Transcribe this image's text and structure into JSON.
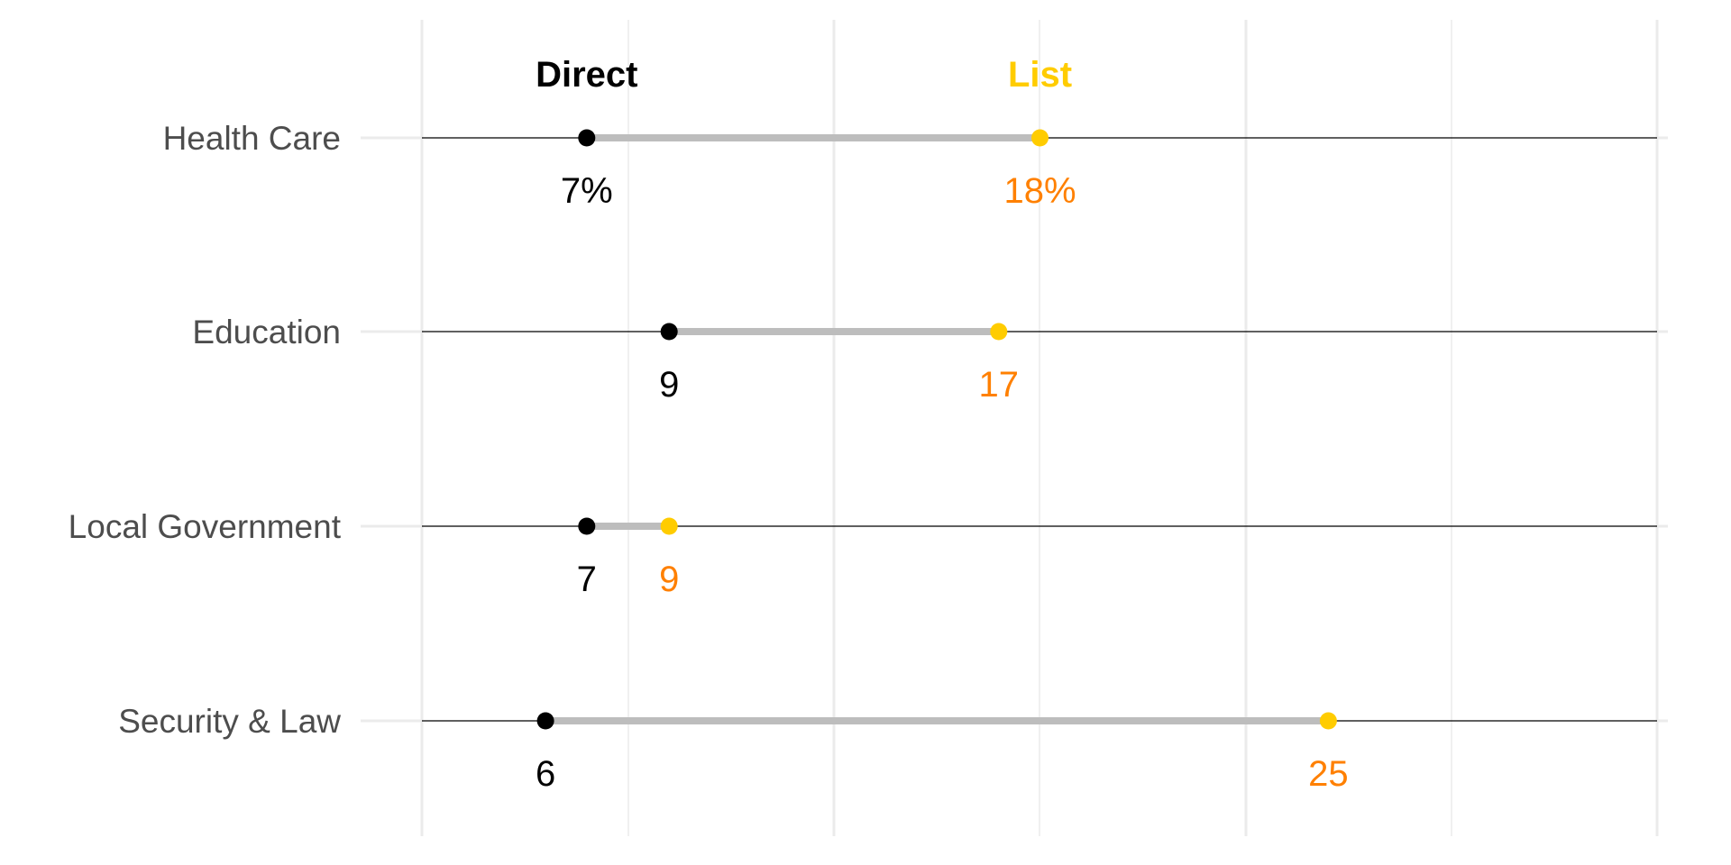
{
  "chart_data": {
    "type": "dumbbell",
    "categories": [
      "Health Care",
      "Education",
      "Local Government",
      "Security & Law"
    ],
    "series": [
      {
        "name": "Direct",
        "values": [
          7,
          9,
          7,
          6
        ],
        "labels": [
          "7%",
          "9",
          "7",
          "6"
        ],
        "color": "#000000",
        "label_color": "#000000"
      },
      {
        "name": "List",
        "values": [
          18,
          17,
          9,
          25
        ],
        "labels": [
          "18%",
          "17",
          "9",
          "25"
        ],
        "color": "#FFCC00",
        "label_color": "#FF8000"
      }
    ],
    "connector_color": "#BDBDBD",
    "grid": true,
    "legend": "inline-top"
  }
}
